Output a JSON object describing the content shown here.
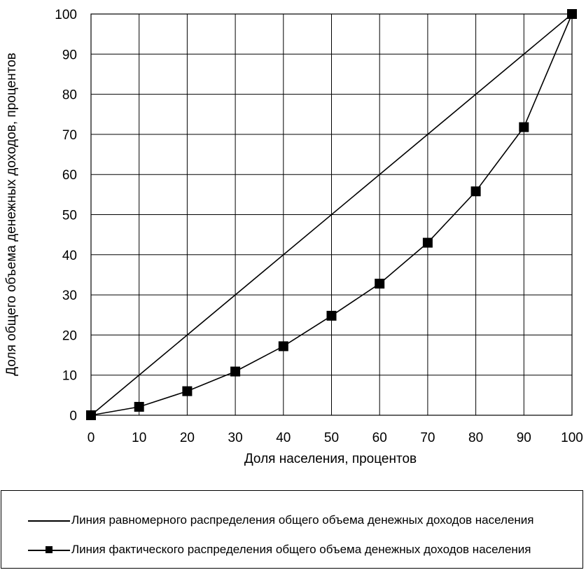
{
  "chart_data": {
    "type": "line",
    "xlabel": "Доля населения, процентов",
    "ylabel": "Доля общего объема денежных доходов, процентов",
    "xlim": [
      0,
      100
    ],
    "ylim": [
      0,
      100
    ],
    "x_ticks": [
      "0",
      "10",
      "20",
      "30",
      "40",
      "50",
      "60",
      "70",
      "80",
      "90",
      "100"
    ],
    "y_ticks": [
      "0",
      "10",
      "20",
      "30",
      "40",
      "50",
      "60",
      "70",
      "80",
      "90",
      "100"
    ],
    "grid": true,
    "legend_position": "bottom",
    "series": [
      {
        "name": "Линия равномерного распределения общего объема денежных доходов населения",
        "x": [
          0,
          100
        ],
        "y": [
          0,
          100
        ],
        "marker": "none",
        "color": "#000000"
      },
      {
        "name": "Линия фактического распределения общего объема денежных доходов населения",
        "x": [
          0,
          10,
          20,
          30,
          40,
          50,
          60,
          70,
          80,
          90,
          100
        ],
        "y": [
          0,
          2.1,
          6,
          10.9,
          17.2,
          24.8,
          32.8,
          43,
          55.8,
          71.8,
          100
        ],
        "marker": "square",
        "color": "#000000"
      }
    ]
  }
}
